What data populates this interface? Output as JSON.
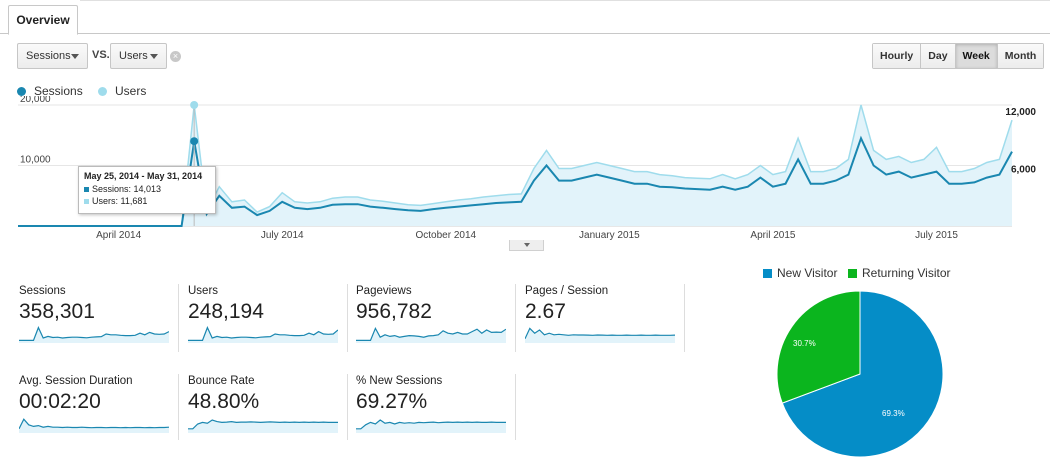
{
  "tabs": {
    "overview": "Overview"
  },
  "selectors": {
    "primary": "Sessions",
    "vs": "VS.",
    "secondary": "Users"
  },
  "time_buttons": [
    "Hourly",
    "Day",
    "Week",
    "Month"
  ],
  "active_time": "Week",
  "legend": {
    "sessions": "Sessions",
    "users": "Users"
  },
  "colors": {
    "sessions": "#1a87b0",
    "users": "#9fdcec",
    "area": "#e2f3fa",
    "new_visitor": "#058dc7",
    "returning_visitor": "#0bb51e"
  },
  "tooltip": {
    "title": "May 25, 2014 - May 31, 2014",
    "sessions": "Sessions: 14,013",
    "users": "Users: 11,681"
  },
  "chart_data": [
    {
      "type": "line",
      "x_labels": [
        "April 2014",
        "July 2014",
        "October 2014",
        "January 2015",
        "April 2015",
        "July 2015"
      ],
      "y_left_ticks": [
        "20,000",
        "10,000"
      ],
      "y_right_ticks": [
        "12,000",
        "6,000"
      ],
      "ylim": [
        0,
        20000
      ],
      "series": [
        {
          "name": "Sessions",
          "values": [
            0,
            0,
            0,
            0,
            0,
            0,
            0,
            0,
            0,
            0,
            0,
            0,
            0,
            0,
            14013,
            2000,
            5000,
            3000,
            3200,
            1800,
            2500,
            4000,
            3000,
            2800,
            3000,
            3500,
            3600,
            3600,
            3200,
            3000,
            2800,
            2600,
            2500,
            2800,
            3000,
            3200,
            3400,
            3600,
            3800,
            3900,
            4000,
            7500,
            10000,
            7500,
            7500,
            8000,
            8500,
            8000,
            7500,
            7000,
            7000,
            6500,
            6400,
            6200,
            6100,
            6000,
            6500,
            6000,
            6500,
            8000,
            6500,
            7000,
            11000,
            7000,
            7000,
            7500,
            8500,
            14500,
            10000,
            8500,
            9000,
            8000,
            8500,
            9000,
            7000,
            7000,
            7200,
            8000,
            8500,
            12300
          ]
        },
        {
          "name": "Users",
          "values": [
            0,
            0,
            0,
            0,
            0,
            0,
            0,
            0,
            0,
            0,
            0,
            0,
            0,
            0,
            20000,
            2500,
            6500,
            4000,
            4300,
            2300,
            3200,
            5500,
            4000,
            3800,
            4000,
            4600,
            4800,
            4800,
            4300,
            4100,
            3800,
            3500,
            3400,
            3700,
            4000,
            4300,
            4500,
            4800,
            5000,
            5200,
            5300,
            9500,
            12500,
            9500,
            9500,
            10000,
            10500,
            10000,
            9500,
            9000,
            9000,
            8500,
            8300,
            8000,
            7900,
            7800,
            8500,
            7800,
            8500,
            10000,
            8500,
            9000,
            14500,
            9000,
            9000,
            9500,
            11000,
            20000,
            12500,
            11000,
            11500,
            10500,
            11000,
            13000,
            9000,
            9000,
            9500,
            10500,
            11000,
            17500
          ]
        }
      ]
    },
    {
      "type": "pie",
      "labels": [
        "New Visitor",
        "Returning Visitor"
      ],
      "values": [
        69.3,
        30.7
      ],
      "slice_labels": [
        "69.3%",
        "30.7%"
      ]
    }
  ],
  "metrics": [
    {
      "label": "Sessions",
      "value": "358,301",
      "spark": [
        0.1,
        0.1,
        0.1,
        0.1,
        0.9,
        0.25,
        0.35,
        0.28,
        0.3,
        0.25,
        0.28,
        0.3,
        0.3,
        0.28,
        0.26,
        0.3,
        0.32,
        0.34,
        0.5,
        0.45,
        0.45,
        0.42,
        0.4,
        0.4,
        0.42,
        0.55,
        0.45,
        0.6,
        0.5,
        0.48,
        0.5,
        0.65
      ]
    },
    {
      "label": "Users",
      "value": "248,194",
      "spark": [
        0.1,
        0.1,
        0.1,
        0.1,
        0.9,
        0.25,
        0.35,
        0.28,
        0.3,
        0.25,
        0.28,
        0.3,
        0.3,
        0.28,
        0.26,
        0.3,
        0.32,
        0.34,
        0.5,
        0.45,
        0.45,
        0.42,
        0.4,
        0.4,
        0.42,
        0.55,
        0.45,
        0.65,
        0.5,
        0.48,
        0.5,
        0.75
      ]
    },
    {
      "label": "Pageviews",
      "value": "956,782",
      "spark": [
        0.1,
        0.1,
        0.1,
        0.1,
        0.85,
        0.3,
        0.45,
        0.35,
        0.4,
        0.3,
        0.35,
        0.4,
        0.38,
        0.35,
        0.3,
        0.38,
        0.4,
        0.45,
        0.7,
        0.55,
        0.5,
        0.6,
        0.5,
        0.5,
        0.65,
        0.8,
        0.55,
        0.75,
        0.6,
        0.62,
        0.6,
        0.8
      ]
    },
    {
      "label": "Pages / Session",
      "value": "2.67",
      "spark": [
        0.2,
        0.85,
        0.55,
        0.75,
        0.45,
        0.55,
        0.45,
        0.48,
        0.45,
        0.42,
        0.45,
        0.44,
        0.44,
        0.43,
        0.42,
        0.44,
        0.43,
        0.42,
        0.43,
        0.42,
        0.42,
        0.43,
        0.42,
        0.42,
        0.43,
        0.42,
        0.42,
        0.43,
        0.42,
        0.42,
        0.42,
        0.43
      ]
    },
    {
      "label": "Avg. Session Duration",
      "value": "00:02:20",
      "spark": [
        0.2,
        0.8,
        0.45,
        0.35,
        0.4,
        0.3,
        0.35,
        0.3,
        0.3,
        0.28,
        0.3,
        0.28,
        0.28,
        0.3,
        0.28,
        0.27,
        0.28,
        0.28,
        0.27,
        0.28,
        0.28,
        0.27,
        0.28,
        0.27,
        0.28,
        0.28,
        0.27,
        0.28,
        0.27,
        0.28,
        0.28,
        0.3
      ]
    },
    {
      "label": "Bounce Rate",
      "value": "48.80%",
      "spark": [
        0.2,
        0.2,
        0.5,
        0.6,
        0.55,
        0.75,
        0.65,
        0.6,
        0.62,
        0.65,
        0.6,
        0.62,
        0.62,
        0.63,
        0.62,
        0.6,
        0.62,
        0.63,
        0.62,
        0.6,
        0.62,
        0.6,
        0.62,
        0.6,
        0.62,
        0.6,
        0.62,
        0.6,
        0.62,
        0.6,
        0.6,
        0.6
      ]
    },
    {
      "label": "% New Sessions",
      "value": "69.27%",
      "spark": [
        0.2,
        0.2,
        0.45,
        0.6,
        0.5,
        0.75,
        0.55,
        0.6,
        0.5,
        0.6,
        0.55,
        0.58,
        0.55,
        0.6,
        0.58,
        0.6,
        0.62,
        0.58,
        0.6,
        0.62,
        0.6,
        0.62,
        0.6,
        0.62,
        0.6,
        0.62,
        0.6,
        0.6,
        0.62,
        0.6,
        0.6,
        0.6
      ]
    }
  ]
}
